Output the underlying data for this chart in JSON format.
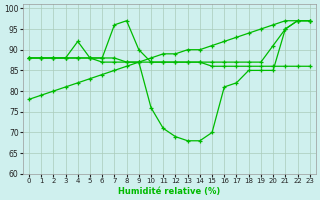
{
  "xlabel": "Humidité relative (%)",
  "bg_color": "#cff0ee",
  "grid_color": "#aaccbb",
  "line_color": "#00bb00",
  "xlim": [
    -0.5,
    23.5
  ],
  "ylim": [
    60,
    101
  ],
  "yticks": [
    60,
    65,
    70,
    75,
    80,
    85,
    90,
    95,
    100
  ],
  "xticks": [
    0,
    1,
    2,
    3,
    4,
    5,
    6,
    7,
    8,
    9,
    10,
    11,
    12,
    13,
    14,
    15,
    16,
    17,
    18,
    19,
    20,
    21,
    22,
    23
  ],
  "line1_y": [
    78,
    79,
    80,
    81,
    82,
    83,
    84,
    85,
    86,
    87,
    88,
    89,
    89,
    90,
    90,
    91,
    92,
    93,
    94,
    95,
    96,
    97,
    97,
    97
  ],
  "line2_y": [
    88,
    88,
    88,
    88,
    92,
    88,
    88,
    96,
    97,
    90,
    87,
    87,
    87,
    87,
    87,
    87,
    87,
    87,
    87,
    87,
    91,
    95,
    97,
    97
  ],
  "line3_y": [
    88,
    88,
    88,
    88,
    88,
    88,
    87,
    87,
    87,
    87,
    87,
    87,
    87,
    87,
    87,
    86,
    86,
    86,
    86,
    86,
    86,
    86,
    86,
    86
  ],
  "line4_y": [
    88,
    88,
    88,
    88,
    88,
    88,
    88,
    88,
    87,
    87,
    76,
    71,
    69,
    68,
    68,
    70,
    81,
    82,
    85,
    85,
    85,
    95,
    97,
    97
  ]
}
